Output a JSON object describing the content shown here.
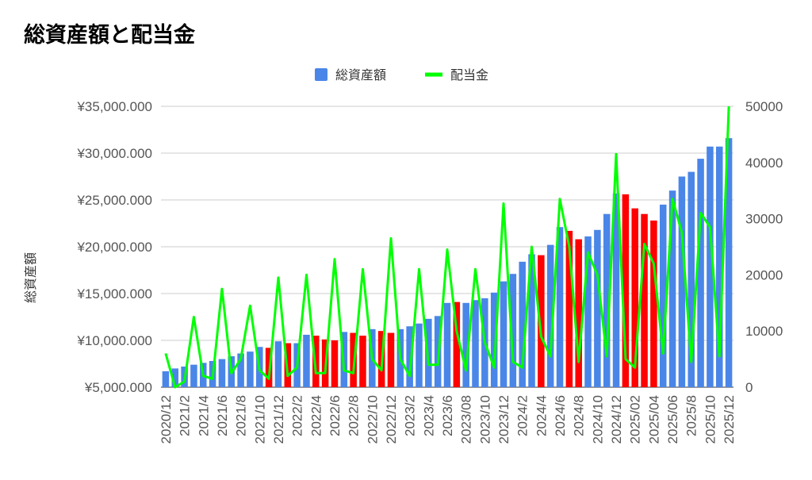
{
  "chart_data": {
    "type": "bar",
    "title": "総資産額と配当金",
    "ylabel": "総資産額",
    "ylabel_right": "",
    "legend_position": "top",
    "grid": true,
    "ylim": [
      5000,
      35000
    ],
    "ylim_right": [
      0,
      50000
    ],
    "yticks": [
      "¥35,000.000",
      "¥30,000.000",
      "¥25,000.000",
      "¥20,000.000",
      "¥15,000.000",
      "¥10,000.000",
      "¥5,000.000"
    ],
    "yticks_right": [
      "50000",
      "40000",
      "30000",
      "20000",
      "10000",
      "0"
    ],
    "categories": [
      "2020/12",
      "2021/1",
      "2021/2",
      "2021/3",
      "2021/4",
      "2021/5",
      "2021/6",
      "2021/7",
      "2021/8",
      "2021/9",
      "2021/10",
      "2021/11",
      "2021/12",
      "2022/1",
      "2022/2",
      "2022/3",
      "2022/4",
      "2022/5",
      "2022/6",
      "2022/7",
      "2022/8",
      "2022/9",
      "2022/10",
      "2022/11",
      "2022/12",
      "2023/1",
      "2023/2",
      "2023/3",
      "2023/4",
      "2023/5",
      "2023/6",
      "2023/7",
      "2023/08",
      "2023/09",
      "2023/10",
      "2023/11",
      "2023/12",
      "2024/1",
      "2024/2",
      "2024/3",
      "2024/4",
      "2024/5",
      "2024/6",
      "2024/7",
      "2024/8",
      "2024/9",
      "2024/10",
      "2024/11",
      "2024/12",
      "2025/01",
      "2025/02",
      "2025/03",
      "2025/04",
      "2025/05",
      "2025/06",
      "2025/7",
      "2025/8",
      "2025/9",
      "2025/10",
      "2025/11",
      "2025/12"
    ],
    "visible_xticks": [
      "2020/12",
      "2021/2",
      "2021/4",
      "2021/6",
      "2021/8",
      "2021/10",
      "2021/12",
      "2022/2",
      "2022/4",
      "2022/6",
      "2022/8",
      "2022/10",
      "2022/12",
      "2023/2",
      "2023/4",
      "2023/6",
      "2023/08",
      "2023/10",
      "2023/12",
      "2024/2",
      "2024/4",
      "2024/6",
      "2024/8",
      "2024/10",
      "2024/12",
      "2025/02",
      "2025/04",
      "2025/06",
      "2025/8",
      "2025/10",
      "2025/12"
    ],
    "series": [
      {
        "name": "総資産額",
        "type": "bar",
        "axis": "left",
        "color": "#4a86e8",
        "values": [
          6700,
          7000,
          7200,
          7400,
          7600,
          7800,
          8000,
          8300,
          8600,
          8800,
          9300,
          9200,
          9900,
          9700,
          9700,
          10600,
          10500,
          10100,
          10000,
          10900,
          10800,
          10500,
          11200,
          11000,
          10800,
          11200,
          11500,
          11800,
          12300,
          12600,
          14000,
          14100,
          14000,
          14300,
          14500,
          15100,
          16300,
          17100,
          18400,
          19200,
          19100,
          20200,
          22100,
          21700,
          20800,
          21100,
          21800,
          23500,
          25700,
          25600,
          24100,
          23500,
          22800,
          24500,
          26000,
          27500,
          28000,
          29400,
          30700,
          30700,
          31600
        ],
        "colors": [
          "#4a86e8",
          "#4a86e8",
          "#4a86e8",
          "#4a86e8",
          "#4a86e8",
          "#4a86e8",
          "#4a86e8",
          "#4a86e8",
          "#4a86e8",
          "#4a86e8",
          "#4a86e8",
          "#ff0000",
          "#4a86e8",
          "#ff0000",
          "#4a86e8",
          "#4a86e8",
          "#ff0000",
          "#ff0000",
          "#ff0000",
          "#4a86e8",
          "#ff0000",
          "#ff0000",
          "#4a86e8",
          "#ff0000",
          "#ff0000",
          "#4a86e8",
          "#4a86e8",
          "#4a86e8",
          "#4a86e8",
          "#4a86e8",
          "#4a86e8",
          "#ff0000",
          "#4a86e8",
          "#4a86e8",
          "#4a86e8",
          "#4a86e8",
          "#4a86e8",
          "#4a86e8",
          "#4a86e8",
          "#4a86e8",
          "#ff0000",
          "#4a86e8",
          "#4a86e8",
          "#ff0000",
          "#ff0000",
          "#4a86e8",
          "#4a86e8",
          "#4a86e8",
          "#4a86e8",
          "#ff0000",
          "#ff0000",
          "#ff0000",
          "#ff0000",
          "#4a86e8",
          "#4a86e8",
          "#4a86e8",
          "#4a86e8",
          "#4a86e8",
          "#4a86e8",
          "#4a86e8",
          "#4a86e8"
        ]
      },
      {
        "name": "配当金",
        "type": "line",
        "axis": "right",
        "color": "#00ff00",
        "values": [
          6000,
          0,
          1000,
          12500,
          2000,
          1500,
          17500,
          2500,
          5000,
          14500,
          3000,
          1500,
          19500,
          2000,
          3500,
          20000,
          2500,
          2500,
          22800,
          3000,
          2500,
          21000,
          5000,
          3000,
          26500,
          5000,
          2000,
          21000,
          4000,
          4000,
          24500,
          10000,
          3000,
          21000,
          8000,
          3500,
          32700,
          4500,
          3500,
          25000,
          9000,
          5500,
          33500,
          25000,
          4500,
          24000,
          20000,
          5500,
          41500,
          5000,
          3500,
          25500,
          22000,
          6000,
          33500,
          27500,
          4500,
          31000,
          28500,
          5500,
          50000
        ]
      }
    ]
  }
}
